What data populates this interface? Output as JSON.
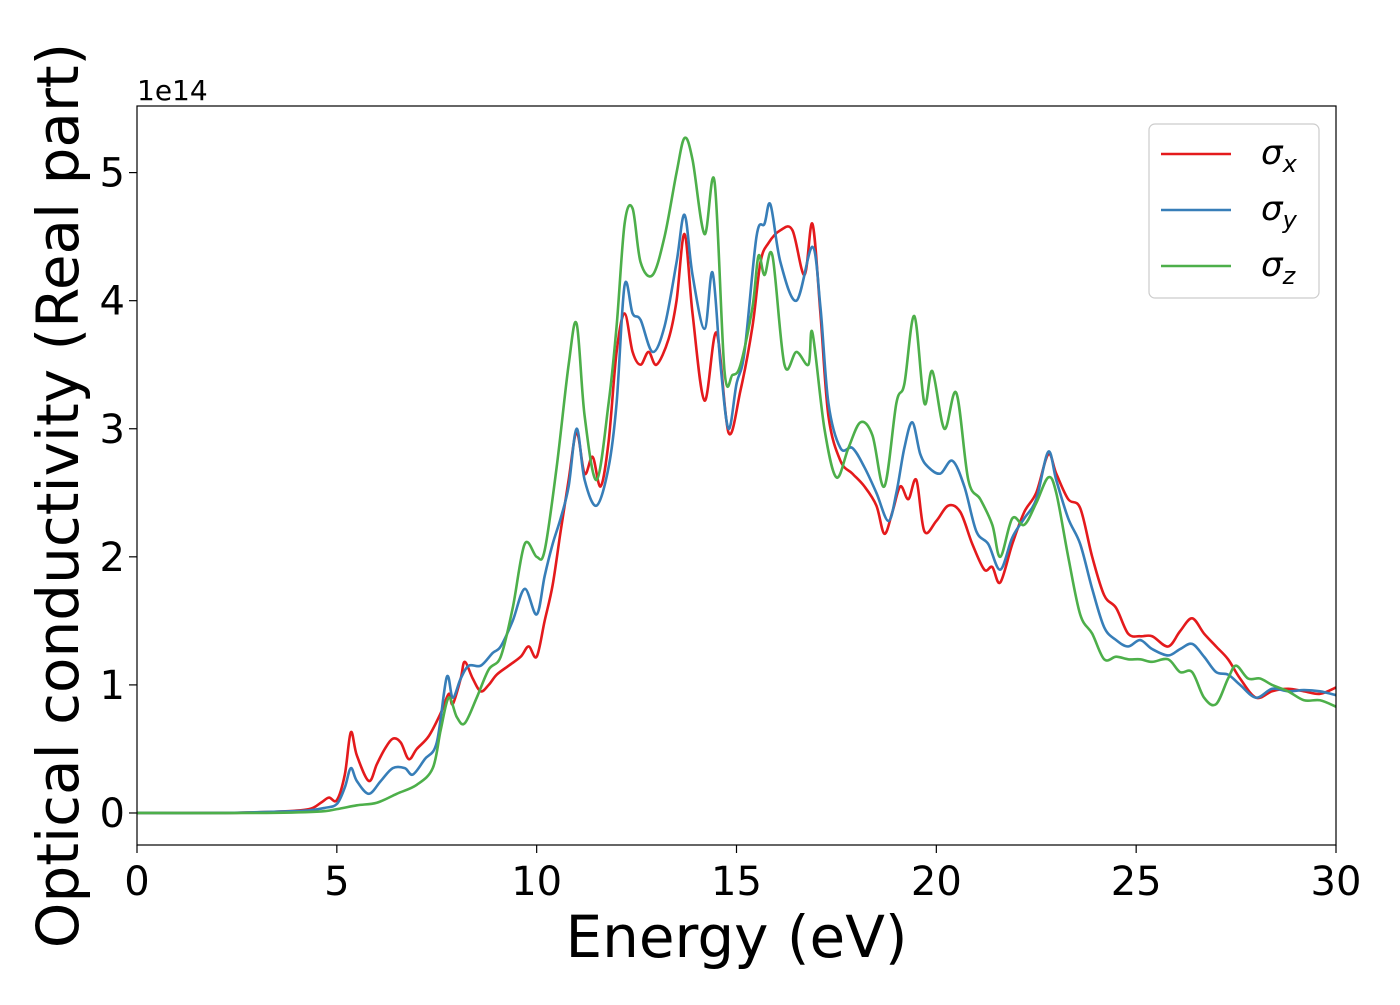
{
  "chart_data": {
    "type": "line",
    "xlabel": "Energy (eV)",
    "ylabel": "Optical conductivity (Real part)",
    "y_offset_text": "1e14",
    "xlim": [
      0,
      30
    ],
    "ylim": [
      -0.25,
      5.52
    ],
    "x_ticks": [
      0,
      5,
      10,
      15,
      20,
      25,
      30
    ],
    "x_tick_labels": [
      "0",
      "5",
      "10",
      "15",
      "20",
      "25",
      "30"
    ],
    "y_ticks": [
      0,
      1,
      2,
      3,
      4,
      5
    ],
    "y_tick_labels": [
      "0",
      "1",
      "2",
      "3",
      "4",
      "5"
    ],
    "grid": false,
    "legend_position": "top-right",
    "series": [
      {
        "name": "σx",
        "name_base": "σ",
        "name_sub": "x",
        "color": "#e41a1c",
        "points": [
          [
            0,
            0
          ],
          [
            2,
            0
          ],
          [
            3.5,
            0.01
          ],
          [
            4.3,
            0.03
          ],
          [
            4.6,
            0.08
          ],
          [
            4.8,
            0.12
          ],
          [
            5.0,
            0.1
          ],
          [
            5.2,
            0.3
          ],
          [
            5.35,
            0.63
          ],
          [
            5.5,
            0.45
          ],
          [
            5.8,
            0.25
          ],
          [
            6.0,
            0.38
          ],
          [
            6.2,
            0.5
          ],
          [
            6.4,
            0.58
          ],
          [
            6.6,
            0.55
          ],
          [
            6.8,
            0.42
          ],
          [
            7.0,
            0.5
          ],
          [
            7.3,
            0.6
          ],
          [
            7.6,
            0.78
          ],
          [
            7.8,
            0.93
          ],
          [
            7.9,
            0.85
          ],
          [
            8.1,
            1.05
          ],
          [
            8.2,
            1.18
          ],
          [
            8.4,
            1.05
          ],
          [
            8.6,
            0.95
          ],
          [
            8.8,
            1.0
          ],
          [
            9.0,
            1.08
          ],
          [
            9.3,
            1.15
          ],
          [
            9.6,
            1.22
          ],
          [
            9.8,
            1.3
          ],
          [
            10.0,
            1.22
          ],
          [
            10.2,
            1.5
          ],
          [
            10.4,
            1.78
          ],
          [
            10.6,
            2.2
          ],
          [
            10.8,
            2.6
          ],
          [
            11.0,
            2.97
          ],
          [
            11.2,
            2.65
          ],
          [
            11.4,
            2.78
          ],
          [
            11.6,
            2.55
          ],
          [
            11.8,
            2.9
          ],
          [
            12.0,
            3.6
          ],
          [
            12.2,
            3.9
          ],
          [
            12.4,
            3.6
          ],
          [
            12.6,
            3.5
          ],
          [
            12.8,
            3.6
          ],
          [
            13.0,
            3.5
          ],
          [
            13.3,
            3.7
          ],
          [
            13.5,
            4.0
          ],
          [
            13.7,
            4.52
          ],
          [
            13.9,
            3.9
          ],
          [
            14.2,
            3.22
          ],
          [
            14.5,
            3.75
          ],
          [
            14.8,
            2.97
          ],
          [
            15.1,
            3.3
          ],
          [
            15.4,
            3.8
          ],
          [
            15.6,
            4.3
          ],
          [
            15.8,
            4.45
          ],
          [
            16.1,
            4.55
          ],
          [
            16.4,
            4.55
          ],
          [
            16.7,
            4.2
          ],
          [
            16.9,
            4.6
          ],
          [
            17.1,
            3.9
          ],
          [
            17.3,
            3.1
          ],
          [
            17.6,
            2.75
          ],
          [
            17.9,
            2.65
          ],
          [
            18.2,
            2.55
          ],
          [
            18.5,
            2.4
          ],
          [
            18.7,
            2.18
          ],
          [
            18.9,
            2.35
          ],
          [
            19.1,
            2.55
          ],
          [
            19.3,
            2.45
          ],
          [
            19.5,
            2.6
          ],
          [
            19.7,
            2.2
          ],
          [
            20.0,
            2.28
          ],
          [
            20.3,
            2.4
          ],
          [
            20.6,
            2.35
          ],
          [
            20.9,
            2.1
          ],
          [
            21.2,
            1.9
          ],
          [
            21.4,
            1.92
          ],
          [
            21.6,
            1.8
          ],
          [
            21.9,
            2.1
          ],
          [
            22.2,
            2.35
          ],
          [
            22.5,
            2.5
          ],
          [
            22.8,
            2.8
          ],
          [
            23.0,
            2.65
          ],
          [
            23.3,
            2.45
          ],
          [
            23.6,
            2.38
          ],
          [
            23.9,
            2.0
          ],
          [
            24.2,
            1.7
          ],
          [
            24.5,
            1.6
          ],
          [
            24.8,
            1.4
          ],
          [
            25.1,
            1.38
          ],
          [
            25.4,
            1.38
          ],
          [
            25.8,
            1.3
          ],
          [
            26.1,
            1.42
          ],
          [
            26.4,
            1.52
          ],
          [
            26.7,
            1.4
          ],
          [
            27.0,
            1.3
          ],
          [
            27.3,
            1.2
          ],
          [
            27.6,
            1.05
          ],
          [
            28.0,
            0.9
          ],
          [
            28.4,
            0.95
          ],
          [
            28.8,
            0.97
          ],
          [
            29.2,
            0.95
          ],
          [
            29.6,
            0.93
          ],
          [
            30.0,
            0.98
          ]
        ]
      },
      {
        "name": "σy",
        "name_base": "σ",
        "name_sub": "y",
        "color": "#377eb8",
        "points": [
          [
            0,
            0
          ],
          [
            2,
            0
          ],
          [
            3.5,
            0.01
          ],
          [
            4.3,
            0.02
          ],
          [
            4.7,
            0.04
          ],
          [
            5.0,
            0.07
          ],
          [
            5.2,
            0.2
          ],
          [
            5.35,
            0.35
          ],
          [
            5.5,
            0.25
          ],
          [
            5.8,
            0.15
          ],
          [
            6.1,
            0.25
          ],
          [
            6.4,
            0.35
          ],
          [
            6.7,
            0.35
          ],
          [
            6.9,
            0.3
          ],
          [
            7.2,
            0.42
          ],
          [
            7.5,
            0.55
          ],
          [
            7.75,
            1.06
          ],
          [
            7.9,
            0.9
          ],
          [
            8.1,
            1.05
          ],
          [
            8.3,
            1.15
          ],
          [
            8.6,
            1.15
          ],
          [
            8.9,
            1.25
          ],
          [
            9.1,
            1.3
          ],
          [
            9.4,
            1.5
          ],
          [
            9.7,
            1.75
          ],
          [
            10.0,
            1.55
          ],
          [
            10.2,
            1.85
          ],
          [
            10.4,
            2.1
          ],
          [
            10.6,
            2.3
          ],
          [
            10.8,
            2.55
          ],
          [
            11.0,
            3.0
          ],
          [
            11.2,
            2.6
          ],
          [
            11.5,
            2.4
          ],
          [
            11.8,
            2.7
          ],
          [
            12.0,
            3.2
          ],
          [
            12.2,
            4.12
          ],
          [
            12.4,
            3.9
          ],
          [
            12.6,
            3.85
          ],
          [
            12.9,
            3.6
          ],
          [
            13.2,
            3.8
          ],
          [
            13.5,
            4.3
          ],
          [
            13.7,
            4.67
          ],
          [
            13.9,
            4.2
          ],
          [
            14.2,
            3.78
          ],
          [
            14.4,
            4.22
          ],
          [
            14.6,
            3.5
          ],
          [
            14.8,
            3.0
          ],
          [
            15.0,
            3.35
          ],
          [
            15.2,
            3.6
          ],
          [
            15.5,
            4.5
          ],
          [
            15.7,
            4.6
          ],
          [
            15.85,
            4.75
          ],
          [
            16.1,
            4.3
          ],
          [
            16.5,
            4.0
          ],
          [
            16.9,
            4.42
          ],
          [
            17.1,
            3.95
          ],
          [
            17.3,
            3.2
          ],
          [
            17.6,
            2.85
          ],
          [
            17.9,
            2.85
          ],
          [
            18.2,
            2.7
          ],
          [
            18.5,
            2.5
          ],
          [
            18.8,
            2.28
          ],
          [
            19.0,
            2.5
          ],
          [
            19.2,
            2.85
          ],
          [
            19.4,
            3.05
          ],
          [
            19.6,
            2.8
          ],
          [
            19.8,
            2.7
          ],
          [
            20.1,
            2.65
          ],
          [
            20.4,
            2.75
          ],
          [
            20.7,
            2.55
          ],
          [
            21.0,
            2.2
          ],
          [
            21.3,
            2.1
          ],
          [
            21.6,
            1.9
          ],
          [
            21.9,
            2.15
          ],
          [
            22.2,
            2.3
          ],
          [
            22.5,
            2.45
          ],
          [
            22.8,
            2.82
          ],
          [
            23.0,
            2.6
          ],
          [
            23.3,
            2.3
          ],
          [
            23.6,
            2.1
          ],
          [
            23.9,
            1.75
          ],
          [
            24.2,
            1.45
          ],
          [
            24.5,
            1.35
          ],
          [
            24.8,
            1.3
          ],
          [
            25.1,
            1.35
          ],
          [
            25.4,
            1.28
          ],
          [
            25.8,
            1.23
          ],
          [
            26.1,
            1.28
          ],
          [
            26.4,
            1.32
          ],
          [
            26.7,
            1.22
          ],
          [
            27.0,
            1.1
          ],
          [
            27.3,
            1.08
          ],
          [
            27.6,
            1.0
          ],
          [
            28.0,
            0.9
          ],
          [
            28.4,
            0.97
          ],
          [
            28.8,
            0.95
          ],
          [
            29.2,
            0.96
          ],
          [
            29.6,
            0.95
          ],
          [
            30.0,
            0.92
          ]
        ]
      },
      {
        "name": "σz",
        "name_base": "σ",
        "name_sub": "z",
        "color": "#4daf4a",
        "points": [
          [
            0,
            0
          ],
          [
            3,
            0
          ],
          [
            4.5,
            0.01
          ],
          [
            5.0,
            0.03
          ],
          [
            5.5,
            0.06
          ],
          [
            6.0,
            0.08
          ],
          [
            6.5,
            0.15
          ],
          [
            7.0,
            0.22
          ],
          [
            7.4,
            0.35
          ],
          [
            7.6,
            0.65
          ],
          [
            7.8,
            0.9
          ],
          [
            8.0,
            0.75
          ],
          [
            8.2,
            0.7
          ],
          [
            8.5,
            0.9
          ],
          [
            8.8,
            1.12
          ],
          [
            9.1,
            1.22
          ],
          [
            9.4,
            1.6
          ],
          [
            9.7,
            2.1
          ],
          [
            10.0,
            2.0
          ],
          [
            10.2,
            2.05
          ],
          [
            10.5,
            2.7
          ],
          [
            10.8,
            3.5
          ],
          [
            11.0,
            3.82
          ],
          [
            11.2,
            3.1
          ],
          [
            11.5,
            2.6
          ],
          [
            11.8,
            3.2
          ],
          [
            12.0,
            3.8
          ],
          [
            12.2,
            4.6
          ],
          [
            12.4,
            4.72
          ],
          [
            12.6,
            4.3
          ],
          [
            12.9,
            4.2
          ],
          [
            13.2,
            4.5
          ],
          [
            13.5,
            5.0
          ],
          [
            13.7,
            5.27
          ],
          [
            13.9,
            5.1
          ],
          [
            14.2,
            4.52
          ],
          [
            14.45,
            4.93
          ],
          [
            14.7,
            3.45
          ],
          [
            14.9,
            3.42
          ],
          [
            15.1,
            3.5
          ],
          [
            15.4,
            3.95
          ],
          [
            15.55,
            4.35
          ],
          [
            15.7,
            4.2
          ],
          [
            15.9,
            4.35
          ],
          [
            16.2,
            3.5
          ],
          [
            16.5,
            3.6
          ],
          [
            16.8,
            3.5
          ],
          [
            16.9,
            3.75
          ],
          [
            17.2,
            3.0
          ],
          [
            17.5,
            2.62
          ],
          [
            17.8,
            2.85
          ],
          [
            18.1,
            3.05
          ],
          [
            18.4,
            2.95
          ],
          [
            18.7,
            2.55
          ],
          [
            19.0,
            3.2
          ],
          [
            19.2,
            3.35
          ],
          [
            19.45,
            3.88
          ],
          [
            19.7,
            3.2
          ],
          [
            19.9,
            3.45
          ],
          [
            20.2,
            3.0
          ],
          [
            20.5,
            3.28
          ],
          [
            20.8,
            2.6
          ],
          [
            21.1,
            2.45
          ],
          [
            21.4,
            2.25
          ],
          [
            21.6,
            2.0
          ],
          [
            21.9,
            2.3
          ],
          [
            22.2,
            2.25
          ],
          [
            22.5,
            2.42
          ],
          [
            22.8,
            2.62
          ],
          [
            23.0,
            2.5
          ],
          [
            23.3,
            2.0
          ],
          [
            23.6,
            1.55
          ],
          [
            23.9,
            1.4
          ],
          [
            24.2,
            1.2
          ],
          [
            24.5,
            1.22
          ],
          [
            24.8,
            1.2
          ],
          [
            25.1,
            1.2
          ],
          [
            25.4,
            1.18
          ],
          [
            25.8,
            1.2
          ],
          [
            26.1,
            1.1
          ],
          [
            26.4,
            1.1
          ],
          [
            26.7,
            0.9
          ],
          [
            27.0,
            0.85
          ],
          [
            27.3,
            1.05
          ],
          [
            27.5,
            1.15
          ],
          [
            27.8,
            1.05
          ],
          [
            28.1,
            1.05
          ],
          [
            28.4,
            1.0
          ],
          [
            28.8,
            0.95
          ],
          [
            29.2,
            0.88
          ],
          [
            29.6,
            0.88
          ],
          [
            30.0,
            0.83
          ]
        ]
      }
    ]
  }
}
